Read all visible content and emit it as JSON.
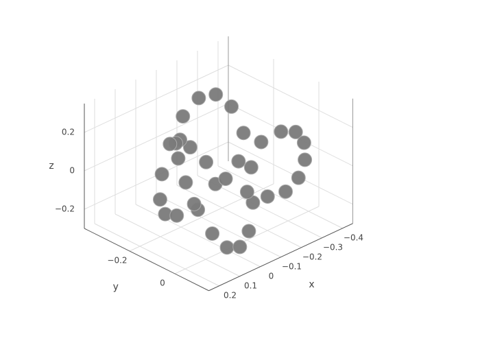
{
  "chart_data": {
    "type": "scatter3d",
    "color": "#7a7a7a",
    "x_label": "x",
    "y_label": "y",
    "z_label": "z",
    "x": [
      -0.1,
      -0.014,
      0.063,
      0.123,
      0.161,
      0.174,
      0.16,
      0.123,
      0.067,
      0,
      -0.07,
      -0.135,
      -0.187,
      -0.22,
      -0.233,
      -0.223,
      -0.194,
      -0.151,
      -0.1,
      -0.049,
      -0.006,
      0.023,
      0.033,
      0.02,
      -0.013,
      -0.065,
      -0.13,
      -0.2,
      -0.267,
      -0.323,
      -0.36,
      -0.374,
      -0.361,
      -0.323,
      -0.263,
      -0.186
    ],
    "y": [
      -0.18,
      -0.172,
      -0.147,
      -0.111,
      -0.066,
      -0.021,
      0.02,
      0.05,
      0.064,
      0.06,
      0.036,
      -0.005,
      -0.06,
      -0.124,
      -0.189,
      -0.249,
      -0.298,
      -0.329,
      -0.34,
      -0.329,
      -0.298,
      -0.249,
      -0.189,
      -0.124,
      -0.06,
      -0.005,
      0.036,
      0.06,
      0.064,
      0.05,
      0.02,
      -0.021,
      -0.066,
      -0.111,
      -0.147,
      -0.172
    ],
    "z": [
      0,
      0.125,
      0.217,
      0.25,
      0.217,
      0.125,
      0,
      -0.125,
      -0.217,
      -0.25,
      -0.217,
      -0.125,
      0,
      0.125,
      0.217,
      0.25,
      0.217,
      0.125,
      0,
      -0.125,
      -0.217,
      -0.25,
      -0.217,
      -0.125,
      0,
      0.125,
      0.217,
      0.25,
      0.217,
      0.125,
      0,
      -0.125,
      -0.217,
      -0.25,
      -0.217,
      -0.125
    ],
    "xlim": [
      -0.45,
      0.25
    ],
    "ylim": [
      -0.4,
      0.15
    ],
    "zlim": [
      -0.3,
      0.35
    ],
    "xticks": [
      {
        "value": -0.4,
        "label": "−0.4"
      },
      {
        "value": -0.3,
        "label": "−0.3"
      },
      {
        "value": -0.2,
        "label": "−0.2"
      },
      {
        "value": -0.1,
        "label": "−0.1"
      },
      0,
      0.1,
      0.2
    ],
    "yticks": [
      {
        "value": -0.2,
        "label": "−0.2"
      },
      0
    ],
    "zticks": [
      {
        "value": -0.2,
        "label": "−0.2"
      },
      0,
      0.2
    ],
    "grid": true
  }
}
